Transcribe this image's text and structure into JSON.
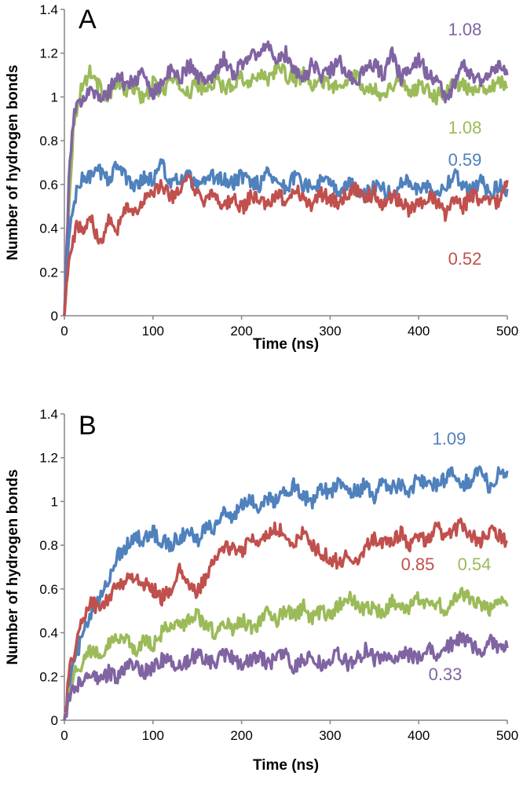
{
  "chart_data": [
    {
      "type": "line",
      "panel": "A",
      "xlabel": "Time (ns)",
      "ylabel": "Number of hydrogen bonds",
      "xlim": [
        0,
        500
      ],
      "ylim": [
        0,
        1.4
      ],
      "xticks": [
        "0",
        "100",
        "200",
        "300",
        "400",
        "500"
      ],
      "yticks": [
        "0",
        "0.2",
        "0.4",
        "0.6",
        "0.8",
        "1",
        "1.2",
        "1.4"
      ],
      "series": [
        {
          "name": "green",
          "color": "#9bbb59",
          "label": "1.08",
          "x": [
            0,
            5,
            10,
            15,
            20,
            30,
            40,
            50,
            60,
            70,
            80,
            90,
            100,
            110,
            120,
            130,
            140,
            150,
            160,
            170,
            180,
            190,
            200,
            210,
            220,
            230,
            240,
            250,
            260,
            270,
            280,
            290,
            300,
            310,
            320,
            330,
            340,
            350,
            360,
            370,
            380,
            390,
            400,
            410,
            420,
            430,
            440,
            450,
            460,
            470,
            480,
            490,
            500
          ],
          "values": [
            0,
            0.5,
            0.85,
            0.98,
            1.05,
            1.12,
            1.04,
            1.0,
            1.07,
            1.02,
            1.05,
            0.98,
            1.06,
            1.02,
            1.08,
            1.05,
            1.02,
            1.06,
            1.03,
            1.08,
            1.04,
            1.06,
            1.1,
            1.05,
            1.12,
            1.08,
            1.14,
            1.1,
            1.08,
            1.1,
            1.04,
            1.08,
            1.06,
            1.03,
            1.07,
            1.1,
            1.02,
            1.05,
            1.0,
            1.06,
            1.08,
            1.02,
            1.05,
            1.04,
            1.0,
            1.03,
            1.07,
            1.05,
            1.02,
            1.06,
            1.04,
            1.08,
            1.04
          ]
        },
        {
          "name": "purple",
          "color": "#8064a2",
          "label": "1.08",
          "x": [
            0,
            5,
            10,
            15,
            20,
            30,
            40,
            50,
            60,
            70,
            80,
            90,
            100,
            110,
            120,
            130,
            140,
            150,
            160,
            170,
            180,
            190,
            200,
            210,
            220,
            230,
            240,
            250,
            260,
            270,
            280,
            290,
            300,
            310,
            320,
            330,
            340,
            350,
            360,
            370,
            380,
            390,
            400,
            410,
            420,
            430,
            440,
            450,
            460,
            470,
            480,
            490,
            500
          ],
          "values": [
            0,
            0.6,
            0.9,
            0.95,
            1.0,
            1.05,
            0.98,
            1.02,
            1.1,
            1.05,
            1.08,
            1.1,
            1.02,
            1.06,
            1.12,
            1.08,
            1.15,
            1.1,
            1.06,
            1.12,
            1.18,
            1.1,
            1.15,
            1.2,
            1.18,
            1.26,
            1.15,
            1.2,
            1.12,
            1.08,
            1.15,
            1.1,
            1.12,
            1.16,
            1.1,
            1.08,
            1.12,
            1.15,
            1.1,
            1.2,
            1.08,
            1.14,
            1.18,
            1.1,
            1.08,
            1.0,
            1.05,
            1.15,
            1.1,
            1.08,
            1.12,
            1.14,
            1.1
          ]
        },
        {
          "name": "blue",
          "color": "#4f81bd",
          "label": "0.59",
          "x": [
            0,
            5,
            10,
            15,
            20,
            30,
            40,
            50,
            60,
            70,
            80,
            90,
            100,
            110,
            120,
            130,
            140,
            150,
            160,
            170,
            180,
            190,
            200,
            210,
            220,
            230,
            240,
            250,
            260,
            270,
            280,
            290,
            300,
            310,
            320,
            330,
            340,
            350,
            360,
            370,
            380,
            390,
            400,
            410,
            420,
            430,
            440,
            450,
            460,
            470,
            480,
            490,
            500
          ],
          "values": [
            0,
            0.35,
            0.5,
            0.58,
            0.62,
            0.64,
            0.66,
            0.62,
            0.7,
            0.62,
            0.6,
            0.63,
            0.62,
            0.7,
            0.6,
            0.62,
            0.64,
            0.58,
            0.61,
            0.64,
            0.62,
            0.6,
            0.64,
            0.62,
            0.6,
            0.66,
            0.62,
            0.58,
            0.64,
            0.6,
            0.58,
            0.62,
            0.6,
            0.56,
            0.6,
            0.58,
            0.55,
            0.6,
            0.58,
            0.55,
            0.6,
            0.62,
            0.58,
            0.6,
            0.56,
            0.6,
            0.64,
            0.6,
            0.58,
            0.62,
            0.56,
            0.6,
            0.58
          ]
        },
        {
          "name": "red",
          "color": "#c0504d",
          "label": "0.52",
          "x": [
            0,
            5,
            10,
            15,
            20,
            30,
            40,
            50,
            60,
            70,
            80,
            90,
            100,
            110,
            120,
            130,
            140,
            150,
            160,
            170,
            180,
            190,
            200,
            210,
            220,
            230,
            240,
            250,
            260,
            270,
            280,
            290,
            300,
            310,
            320,
            330,
            340,
            350,
            360,
            370,
            380,
            390,
            400,
            410,
            420,
            430,
            440,
            450,
            460,
            470,
            480,
            490,
            500
          ],
          "values": [
            0,
            0.28,
            0.35,
            0.42,
            0.38,
            0.45,
            0.32,
            0.46,
            0.4,
            0.5,
            0.48,
            0.52,
            0.56,
            0.6,
            0.54,
            0.58,
            0.62,
            0.55,
            0.52,
            0.56,
            0.5,
            0.54,
            0.48,
            0.55,
            0.52,
            0.5,
            0.56,
            0.52,
            0.58,
            0.54,
            0.5,
            0.56,
            0.54,
            0.52,
            0.56,
            0.58,
            0.54,
            0.56,
            0.5,
            0.55,
            0.52,
            0.48,
            0.5,
            0.54,
            0.52,
            0.46,
            0.52,
            0.5,
            0.55,
            0.52,
            0.54,
            0.52,
            0.62
          ]
        }
      ]
    },
    {
      "type": "line",
      "panel": "B",
      "xlabel": "Time (ns)",
      "ylabel": "Number of hydrogen bonds",
      "xlim": [
        0,
        500
      ],
      "ylim": [
        0,
        1.4
      ],
      "xticks": [
        "0",
        "100",
        "200",
        "300",
        "400",
        "500"
      ],
      "yticks": [
        "0",
        "0.2",
        "0.4",
        "0.6",
        "0.8",
        "1",
        "1.2",
        "1.4"
      ],
      "series": [
        {
          "name": "blue",
          "color": "#4f81bd",
          "label": "1.09",
          "x": [
            0,
            5,
            10,
            15,
            20,
            30,
            40,
            50,
            60,
            70,
            80,
            90,
            100,
            110,
            120,
            130,
            140,
            150,
            160,
            170,
            180,
            190,
            200,
            210,
            220,
            230,
            240,
            250,
            260,
            270,
            280,
            290,
            300,
            310,
            320,
            330,
            340,
            350,
            360,
            370,
            380,
            390,
            400,
            410,
            420,
            430,
            440,
            450,
            460,
            470,
            480,
            490,
            500
          ],
          "values": [
            0,
            0.15,
            0.25,
            0.32,
            0.38,
            0.48,
            0.55,
            0.65,
            0.75,
            0.8,
            0.84,
            0.82,
            0.86,
            0.82,
            0.8,
            0.84,
            0.86,
            0.82,
            0.9,
            0.88,
            0.96,
            0.92,
            0.98,
            1.0,
            0.98,
            1.02,
            1.0,
            1.04,
            1.08,
            1.02,
            1.0,
            1.06,
            1.04,
            1.1,
            1.06,
            1.04,
            1.08,
            1.02,
            1.1,
            1.06,
            1.08,
            1.04,
            1.12,
            1.06,
            1.08,
            1.1,
            1.14,
            1.08,
            1.1,
            1.16,
            1.06,
            1.12,
            1.14
          ]
        },
        {
          "name": "red",
          "color": "#c0504d",
          "label": "0.85",
          "x": [
            0,
            5,
            10,
            15,
            20,
            30,
            40,
            50,
            60,
            70,
            80,
            90,
            100,
            110,
            120,
            130,
            140,
            150,
            160,
            170,
            180,
            190,
            200,
            210,
            220,
            230,
            240,
            250,
            260,
            270,
            280,
            290,
            300,
            310,
            320,
            330,
            340,
            350,
            360,
            370,
            380,
            390,
            400,
            410,
            420,
            430,
            440,
            450,
            460,
            470,
            480,
            490,
            500
          ],
          "values": [
            0,
            0.2,
            0.3,
            0.38,
            0.45,
            0.55,
            0.5,
            0.56,
            0.62,
            0.64,
            0.66,
            0.62,
            0.6,
            0.56,
            0.6,
            0.68,
            0.62,
            0.58,
            0.66,
            0.72,
            0.8,
            0.78,
            0.76,
            0.84,
            0.8,
            0.86,
            0.88,
            0.84,
            0.8,
            0.86,
            0.8,
            0.76,
            0.74,
            0.72,
            0.76,
            0.72,
            0.8,
            0.84,
            0.8,
            0.82,
            0.86,
            0.8,
            0.84,
            0.82,
            0.88,
            0.84,
            0.86,
            0.9,
            0.84,
            0.82,
            0.86,
            0.84,
            0.82
          ]
        },
        {
          "name": "green",
          "color": "#9bbb59",
          "label": "0.54",
          "x": [
            0,
            5,
            10,
            15,
            20,
            30,
            40,
            50,
            60,
            70,
            80,
            90,
            100,
            110,
            120,
            130,
            140,
            150,
            160,
            170,
            180,
            190,
            200,
            210,
            220,
            230,
            240,
            250,
            260,
            270,
            280,
            290,
            300,
            310,
            320,
            330,
            340,
            350,
            360,
            370,
            380,
            390,
            400,
            410,
            420,
            430,
            440,
            450,
            460,
            470,
            480,
            490,
            500
          ],
          "values": [
            0,
            0.12,
            0.2,
            0.24,
            0.26,
            0.32,
            0.3,
            0.36,
            0.38,
            0.36,
            0.32,
            0.36,
            0.34,
            0.4,
            0.44,
            0.42,
            0.46,
            0.48,
            0.44,
            0.4,
            0.44,
            0.42,
            0.46,
            0.42,
            0.44,
            0.5,
            0.46,
            0.5,
            0.48,
            0.52,
            0.46,
            0.5,
            0.48,
            0.52,
            0.56,
            0.54,
            0.5,
            0.52,
            0.48,
            0.54,
            0.5,
            0.52,
            0.56,
            0.52,
            0.54,
            0.5,
            0.56,
            0.58,
            0.54,
            0.52,
            0.5,
            0.56,
            0.52
          ]
        },
        {
          "name": "purple",
          "color": "#8064a2",
          "label": "0.33",
          "x": [
            0,
            5,
            10,
            15,
            20,
            30,
            40,
            50,
            60,
            70,
            80,
            90,
            100,
            110,
            120,
            130,
            140,
            150,
            160,
            170,
            180,
            190,
            200,
            210,
            220,
            230,
            240,
            250,
            260,
            270,
            280,
            290,
            300,
            310,
            320,
            330,
            340,
            350,
            360,
            370,
            380,
            390,
            400,
            410,
            420,
            430,
            440,
            450,
            460,
            470,
            480,
            490,
            500
          ],
          "values": [
            0,
            0.1,
            0.14,
            0.16,
            0.18,
            0.2,
            0.18,
            0.22,
            0.2,
            0.24,
            0.26,
            0.22,
            0.24,
            0.28,
            0.26,
            0.24,
            0.28,
            0.3,
            0.28,
            0.26,
            0.3,
            0.28,
            0.26,
            0.28,
            0.3,
            0.26,
            0.28,
            0.3,
            0.24,
            0.28,
            0.3,
            0.26,
            0.28,
            0.3,
            0.26,
            0.28,
            0.32,
            0.28,
            0.3,
            0.26,
            0.32,
            0.3,
            0.28,
            0.34,
            0.3,
            0.32,
            0.36,
            0.38,
            0.34,
            0.3,
            0.36,
            0.34,
            0.33
          ]
        }
      ]
    }
  ]
}
